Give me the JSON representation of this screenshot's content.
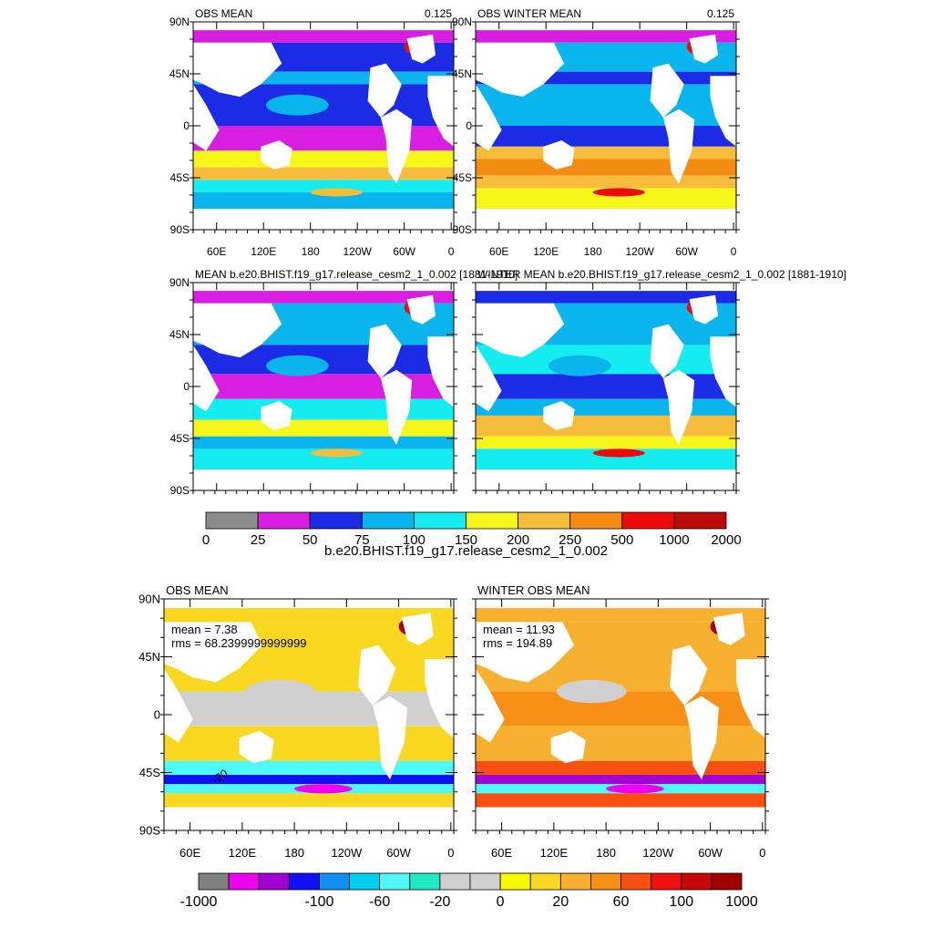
{
  "chart_data": [
    {
      "type": "heatmap",
      "title": "OBS MEAN",
      "right_label": "0.125",
      "yticks": [
        "90N",
        "45N",
        "0",
        "45S",
        "90S"
      ],
      "xticks": [
        "60E",
        "120E",
        "180",
        "120W",
        "60W",
        "0"
      ],
      "colorbar": "cb_top"
    },
    {
      "type": "heatmap",
      "title": "OBS WINTER MEAN",
      "right_label": "0.125",
      "yticks": [
        "90N",
        "45N",
        "0",
        "45S",
        "90S"
      ],
      "xticks": [
        "60E",
        "120E",
        "180",
        "120W",
        "60W",
        "0"
      ],
      "colorbar": "cb_top"
    },
    {
      "type": "heatmap",
      "title": "MEAN b.e20.BHIST.f19_g17.release_cesm2_1_0.002 [1881-1910]",
      "right_label": "",
      "yticks": [
        "90N",
        "45N",
        "0",
        "45S",
        "90S"
      ],
      "xticks": [],
      "colorbar": "cb_top"
    },
    {
      "type": "heatmap",
      "title": "WINTER MEAN b.e20.BHIST.f19_g17.release_cesm2_1_0.002 [1881-1910]",
      "right_label": "",
      "yticks": [],
      "xticks": [],
      "colorbar": "cb_top"
    },
    {
      "type": "heatmap",
      "title": "OBS MEAN",
      "right_label": "",
      "yticks": [
        "90N",
        "45N",
        "0",
        "45S",
        "90S"
      ],
      "xticks": [
        "60E",
        "120E",
        "180",
        "120W",
        "60W",
        "0"
      ],
      "annotations": [
        "mean = 7.38",
        "rms = 68.2399999999999"
      ],
      "contour_label": "-20",
      "colorbar": "cb_bottom"
    },
    {
      "type": "heatmap",
      "title": "WINTER OBS MEAN",
      "right_label": "",
      "yticks": [],
      "xticks": [
        "60E",
        "120E",
        "180",
        "120W",
        "60W",
        "0"
      ],
      "annotations": [
        "mean = 11.93",
        "rms = 194.89"
      ],
      "colorbar": "cb_bottom"
    }
  ],
  "colorbars": {
    "cb_top": {
      "title": "b.e20.BHIST.f19_g17.release_cesm2_1_0.002",
      "levels": [
        "0",
        "25",
        "50",
        "75",
        "100",
        "150",
        "200",
        "250",
        "500",
        "1000",
        "2000"
      ],
      "colors": [
        "#8c8c8c",
        "#d81ee0",
        "#1c2ce6",
        "#0ab4ec",
        "#14ecf0",
        "#f6f61a",
        "#f6bc3c",
        "#f48c14",
        "#ee0a0a",
        "#bb0a0a"
      ]
    },
    "cb_bottom": {
      "title": "",
      "levels": [
        "-1000",
        "-100",
        "-60",
        "-20",
        "0",
        "20",
        "60",
        "100",
        "1000"
      ],
      "colors": [
        "#808080",
        "#f000f0",
        "#a000d0",
        "#1010f0",
        "#1090f0",
        "#00d0f0",
        "#50f8f8",
        "#20e8c0",
        "#d0d0d0",
        "#d0d0d0",
        "#f8f800",
        "#f8d820",
        "#f8b030",
        "#f89018",
        "#f85010",
        "#f01010",
        "#c80808",
        "#a00000"
      ]
    }
  }
}
